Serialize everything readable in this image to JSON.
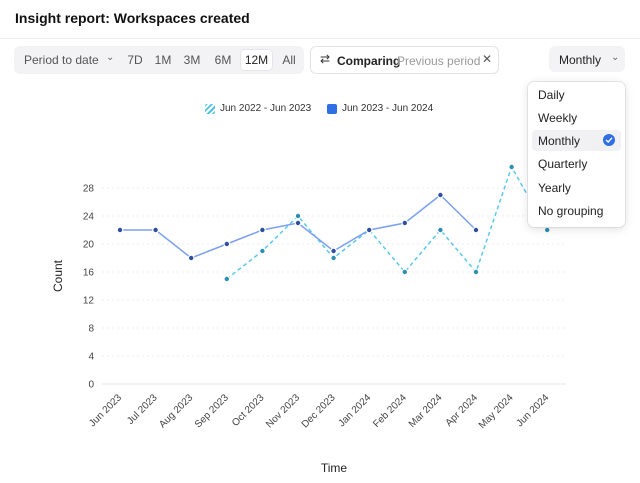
{
  "header": {
    "title": "Insight report: Workspaces created"
  },
  "toolbar": {
    "period_label": "Period to date",
    "range_options": [
      "7D",
      "1M",
      "3M",
      "6M",
      "12M",
      "All"
    ],
    "active_range": "12M",
    "compare_label": "Comparing",
    "compare_value": "Previous period",
    "interval_value": "Monthly"
  },
  "dropdown": {
    "options": [
      "Daily",
      "Weekly",
      "Monthly",
      "Quarterly",
      "Yearly",
      "No grouping"
    ],
    "selected": "Monthly"
  },
  "colors": {
    "current": "#7b9ff0",
    "previous": "#5bc8ea",
    "legend_current": "#2f6fe4",
    "check": "#2f6fe4"
  },
  "chart_data": {
    "type": "line",
    "xlabel": "Time",
    "ylabel": "Count",
    "ylim": [
      0,
      28
    ],
    "yticks": [
      0,
      4,
      8,
      12,
      16,
      20,
      24,
      28
    ],
    "grid": true,
    "legend_position": "top-center",
    "categories": [
      "Jun 2023",
      "Jul 2023",
      "Aug 2023",
      "Sep 2023",
      "Oct 2023",
      "Nov 2023",
      "Dec 2023",
      "Jan 2024",
      "Feb 2024",
      "Mar 2024",
      "Apr 2024",
      "May 2024",
      "Jun 2024"
    ],
    "series": [
      {
        "name": "Jun 2022 - Jun 2023",
        "style": "dashed",
        "values": [
          null,
          null,
          null,
          15,
          19,
          24,
          18,
          22,
          16,
          22,
          16,
          31,
          22
        ]
      },
      {
        "name": "Jun 2023 - Jun 2024",
        "style": "solid",
        "values": [
          22,
          22,
          18,
          20,
          22,
          23,
          19,
          22,
          23,
          27,
          22,
          null,
          null
        ]
      }
    ]
  }
}
